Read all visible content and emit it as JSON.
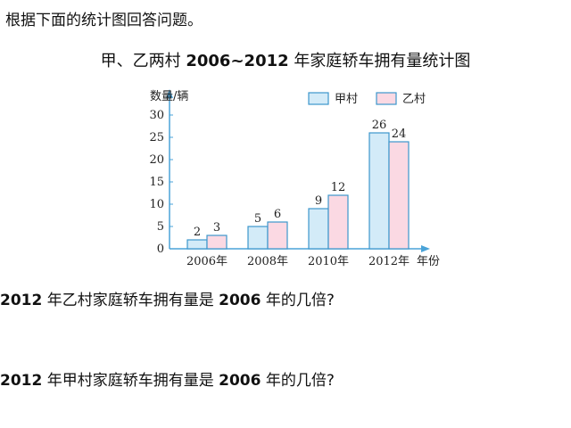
{
  "intro": "根据下面的统计图回答问题。",
  "chart_title": {
    "year_start": "2006",
    "tilde": "~",
    "year_end": "2012",
    "suffix": " 年家庭轿车拥有量统计图",
    "prefix": "甲、乙两村 "
  },
  "questions": [
    {
      "p1": "2012",
      "p2": " 年乙村家庭轿车拥有量是 ",
      "p3": "2006",
      "p4": " 年的几倍?"
    },
    {
      "p1": "2012",
      "p2": " 年甲村家庭轿车拥有量是 ",
      "p3": "2006",
      "p4": " 年的几倍?"
    }
  ],
  "chart_data": {
    "type": "bar",
    "title": "甲、乙两村 2006~2012 年家庭轿车拥有量统计图",
    "categories": [
      "2006年",
      "2008年",
      "2010年",
      "2012年"
    ],
    "series": [
      {
        "name": "甲村",
        "values": [
          2,
          5,
          9,
          26
        ],
        "color": "#d3ebf8"
      },
      {
        "name": "乙村",
        "values": [
          3,
          6,
          12,
          24
        ],
        "color": "#fbd9e3"
      }
    ],
    "ylabel": "数量/辆",
    "xlabel": "年份",
    "ylim": [
      0,
      30
    ],
    "yticks": [
      "0",
      "5",
      "10",
      "15",
      "20",
      "25",
      "30"
    ],
    "legend_position": "top-right",
    "grid": false,
    "axis_color": "#4aa3d8",
    "bar_stroke": "#3c97cc"
  }
}
